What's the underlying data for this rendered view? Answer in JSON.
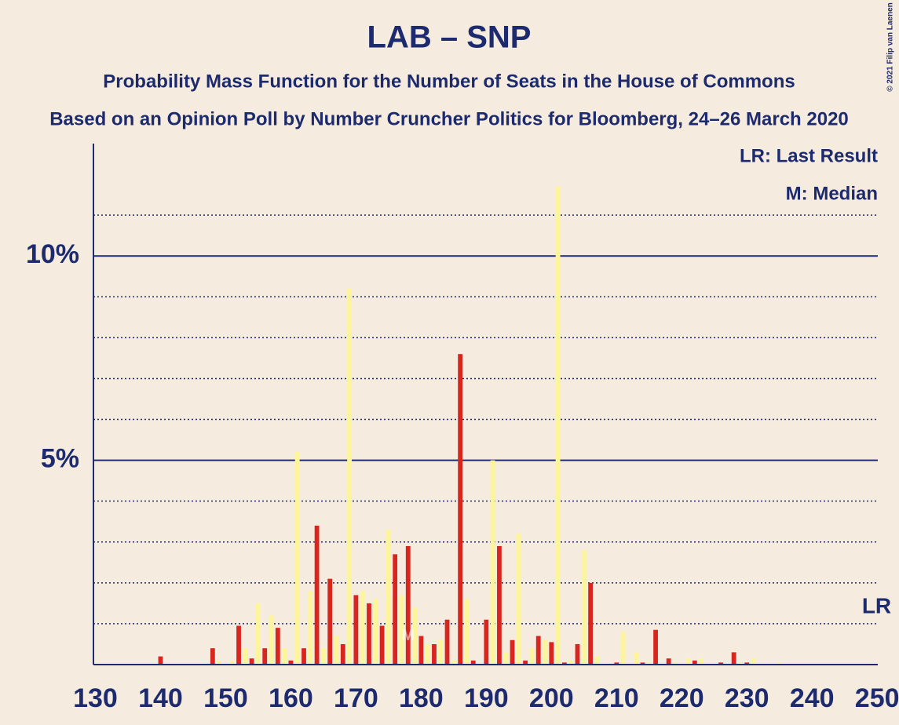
{
  "chart_data": {
    "type": "bar",
    "title": "LAB – SNP",
    "subtitle": "Probability Mass Function for the Number of Seats in the House of Commons",
    "subtitle2": "Based on an Opinion Poll by Number Cruncher Politics for Bloomberg, 24–26 March 2020",
    "copyright": "© 2021 Filip van Laenen",
    "legend_lr": "LR: Last Result",
    "legend_m": "M: Median",
    "last_result": {
      "x": 250,
      "label": "LR"
    },
    "median": {
      "x": 178,
      "label": "M"
    },
    "colors": [
      "#d8261f",
      "#fdf59a"
    ],
    "x": [
      130,
      131,
      132,
      133,
      134,
      135,
      136,
      137,
      138,
      139,
      140,
      141,
      142,
      143,
      144,
      145,
      146,
      147,
      148,
      149,
      150,
      151,
      152,
      153,
      154,
      155,
      156,
      157,
      158,
      159,
      160,
      161,
      162,
      163,
      164,
      165,
      166,
      167,
      168,
      169,
      170,
      171,
      172,
      173,
      174,
      175,
      176,
      177,
      178,
      179,
      180,
      181,
      182,
      183,
      184,
      185,
      186,
      187,
      188,
      189,
      190,
      191,
      192,
      193,
      194,
      195,
      196,
      197,
      198,
      199,
      200,
      201,
      202,
      203,
      204,
      205,
      206,
      207,
      208,
      209,
      210,
      211,
      212,
      213,
      214,
      215,
      216,
      217,
      218,
      219,
      220,
      221,
      222,
      223,
      224,
      225,
      226,
      227,
      228,
      229,
      230,
      231,
      232,
      233,
      234,
      235,
      236,
      237,
      238,
      239,
      240,
      241,
      242,
      243,
      244,
      245,
      246,
      247,
      248,
      249,
      250
    ],
    "values": [
      0,
      0,
      0,
      0,
      0,
      0,
      0,
      0,
      0,
      0,
      0.2,
      0,
      0,
      0,
      0,
      0,
      0,
      0,
      0.4,
      0.1,
      0,
      0.1,
      0.95,
      0.4,
      0.15,
      1.5,
      0.4,
      1.2,
      0.9,
      0.4,
      0.1,
      5.2,
      0.4,
      1.8,
      3.4,
      0.4,
      2.1,
      0.7,
      0.5,
      9.2,
      1.7,
      1.8,
      1.5,
      1.6,
      0.95,
      3.3,
      2.7,
      1.7,
      2.9,
      1.4,
      0.7,
      0.5,
      0.5,
      0.6,
      1.1,
      0.1,
      7.6,
      1.6,
      0.1,
      0,
      1.1,
      5.0,
      2.9,
      0.3,
      0.6,
      3.2,
      0.1,
      0.4,
      0.7,
      0.6,
      0.55,
      11.7,
      0.05,
      0.1,
      0.5,
      2.8,
      2.0,
      0.2,
      0,
      0,
      0.05,
      0.8,
      0,
      0.3,
      0.05,
      0.05,
      0.85,
      0,
      0.15,
      0.05,
      0,
      0.15,
      0.1,
      0.15,
      0,
      0,
      0.05,
      0,
      0.3,
      0.05,
      0.05,
      0.15,
      0,
      0,
      0,
      0.05,
      0,
      0,
      0,
      0,
      0,
      0,
      0,
      0,
      0,
      0,
      0,
      0,
      0,
      0,
      0
    ],
    "xlim": [
      129.7,
      250.1
    ],
    "xticks": [
      130,
      140,
      150,
      160,
      170,
      180,
      190,
      200,
      210,
      220,
      230,
      240,
      250
    ],
    "ylim": [
      0,
      12.75
    ],
    "yticks": [
      {
        "value": 5,
        "label": "5%"
      },
      {
        "value": 10,
        "label": "10%"
      }
    ],
    "minor_grid": [
      1,
      2,
      3,
      4,
      6,
      7,
      8,
      9,
      11
    ]
  }
}
